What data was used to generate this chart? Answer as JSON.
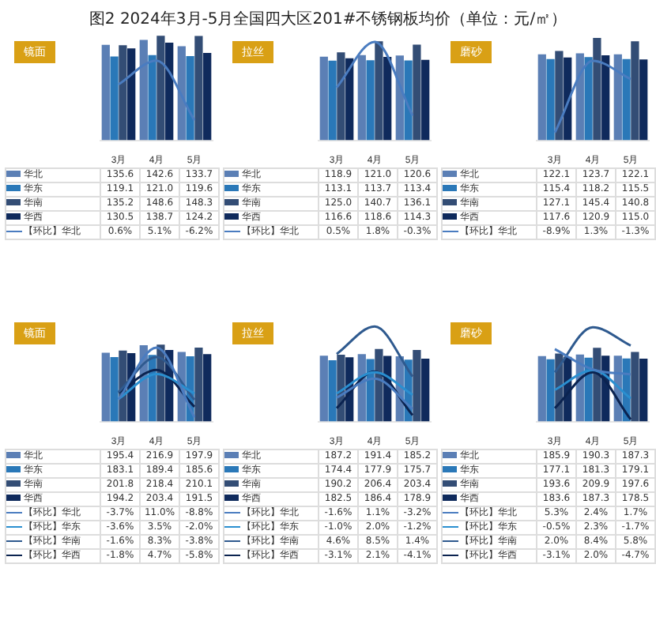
{
  "chart_data": [
    {
      "type": "bar",
      "title": "图2  2024年3月-5月全国四大区201#不锈钢板均价（单位：元/㎡）",
      "subtitle": "镜面",
      "categories": [
        "3月",
        "4月",
        "5月"
      ],
      "data_labels": true,
      "legend": "bottom",
      "series": [
        {
          "name": "华北",
          "color": "#5b7fb5",
          "values": [
            135.6,
            142.6,
            133.7
          ]
        },
        {
          "name": "华东",
          "color": "#2a78b8",
          "values": [
            119.1,
            121.0,
            119.6
          ],
          "value_labels": [
            "119.1",
            "121.0",
            "119.6"
          ]
        },
        {
          "name": "华南",
          "color": "#334d75",
          "values": [
            135.2,
            148.6,
            148.3
          ]
        },
        {
          "name": "华西",
          "color": "#0f2a5c",
          "values": [
            130.5,
            138.7,
            124.2
          ]
        },
        {
          "name": "【环比】华北",
          "type": "line",
          "axis": "y2",
          "color": "#4a7cc0",
          "values": [
            0.6,
            5.1,
            -6.2
          ],
          "value_labels": [
            "0.6%",
            "5.1%",
            "-6.2%"
          ]
        }
      ]
    },
    {
      "type": "bar",
      "subtitle": "拉丝",
      "categories": [
        "3月",
        "4月",
        "5月"
      ],
      "data_labels": true,
      "legend": "bottom",
      "series": [
        {
          "name": "华北",
          "color": "#5b7fb5",
          "values": [
            118.9,
            121.0,
            120.6
          ],
          "value_labels": [
            "118.9",
            "121.0",
            "120.6"
          ]
        },
        {
          "name": "华东",
          "color": "#2a78b8",
          "values": [
            113.1,
            113.7,
            113.4
          ]
        },
        {
          "name": "华南",
          "color": "#334d75",
          "values": [
            125.0,
            140.7,
            136.1
          ],
          "value_labels": [
            "125.0",
            "140.7",
            "136.1"
          ]
        },
        {
          "name": "华西",
          "color": "#0f2a5c",
          "values": [
            116.6,
            118.6,
            114.3
          ]
        },
        {
          "name": "【环比】华北",
          "type": "line",
          "axis": "y2",
          "color": "#4a7cc0",
          "values": [
            0.5,
            1.8,
            -0.3
          ],
          "value_labels": [
            "0.5%",
            "1.8%",
            "-0.3%"
          ]
        }
      ]
    },
    {
      "type": "bar",
      "subtitle": "磨砂",
      "categories": [
        "3月",
        "4月",
        "5月"
      ],
      "data_labels": true,
      "legend": "bottom",
      "series": [
        {
          "name": "华北",
          "color": "#5b7fb5",
          "values": [
            122.1,
            123.7,
            122.1
          ]
        },
        {
          "name": "华东",
          "color": "#2a78b8",
          "values": [
            115.4,
            118.2,
            115.5
          ]
        },
        {
          "name": "华南",
          "color": "#334d75",
          "values": [
            127.1,
            145.4,
            140.8
          ]
        },
        {
          "name": "华西",
          "color": "#0f2a5c",
          "values": [
            117.6,
            120.9,
            115.0
          ],
          "value_labels": [
            "117.6",
            "120.9",
            "115.0"
          ]
        },
        {
          "name": "【环比】华北",
          "type": "line",
          "axis": "y2",
          "color": "#4a7cc0",
          "values": [
            -8.9,
            1.3,
            -1.3
          ],
          "value_labels": [
            "-8.9%",
            "1.3%",
            "-1.3%"
          ]
        }
      ]
    },
    {
      "type": "bar",
      "subtitle": "镜面",
      "categories": [
        "3月",
        "4月",
        "5月"
      ],
      "data_labels": true,
      "legend": "bottom",
      "series": [
        {
          "name": "华北",
          "color": "#5b7fb5",
          "values": [
            195.4,
            216.9,
            197.9
          ]
        },
        {
          "name": "华东",
          "color": "#2a78b8",
          "values": [
            183.1,
            189.4,
            185.6
          ]
        },
        {
          "name": "华南",
          "color": "#334d75",
          "values": [
            201.8,
            218.4,
            210.1
          ]
        },
        {
          "name": "华西",
          "color": "#0f2a5c",
          "values": [
            194.2,
            203.4,
            191.5
          ]
        },
        {
          "name": "【环比】华北",
          "type": "line",
          "axis": "y2",
          "color": "#4a7cc0",
          "values": [
            -3.7,
            11.0,
            -8.8
          ],
          "value_labels": [
            "-3.7%",
            "11.0%",
            "-8.8%"
          ]
        },
        {
          "name": "【环比】华东",
          "type": "line",
          "axis": "y2",
          "color": "#2a8fd0",
          "values": [
            -3.6,
            3.5,
            -2.0
          ],
          "value_labels": [
            "-3.6%",
            "3.5%",
            "-2.0%"
          ]
        },
        {
          "name": "【环比】华南",
          "type": "line",
          "axis": "y2",
          "color": "#2f5a8f",
          "values": [
            -1.6,
            8.3,
            -3.8
          ],
          "value_labels": [
            "-1.6%",
            "8.3%",
            "-3.8%"
          ]
        },
        {
          "name": "【环比】华西",
          "type": "line",
          "axis": "y2",
          "color": "#0b2350",
          "values": [
            -1.8,
            4.7,
            -5.8
          ],
          "value_labels": [
            "-1.8%",
            "4.7%",
            "-5.8%"
          ]
        }
      ]
    },
    {
      "type": "bar",
      "subtitle": "拉丝",
      "categories": [
        "3月",
        "4月",
        "5月"
      ],
      "data_labels": true,
      "legend": "bottom",
      "series": [
        {
          "name": "华北",
          "color": "#5b7fb5",
          "values": [
            187.2,
            191.4,
            185.2
          ]
        },
        {
          "name": "华东",
          "color": "#2a78b8",
          "values": [
            174.4,
            177.9,
            175.7
          ]
        },
        {
          "name": "华南",
          "color": "#334d75",
          "values": [
            190.2,
            206.4,
            203.4
          ]
        },
        {
          "name": "华西",
          "color": "#0f2a5c",
          "values": [
            182.5,
            186.4,
            178.9
          ]
        },
        {
          "name": "【环比】华北",
          "type": "line",
          "axis": "y2",
          "color": "#4a7cc0",
          "values": [
            -1.6,
            1.1,
            -3.2
          ],
          "value_labels": [
            "-1.6%",
            "1.1%",
            "-3.2%"
          ]
        },
        {
          "name": "【环比】华东",
          "type": "line",
          "axis": "y2",
          "color": "#2a8fd0",
          "values": [
            -1.0,
            2.0,
            -1.2
          ],
          "value_labels": [
            "-1.0%",
            "2.0%",
            "-1.2%"
          ]
        },
        {
          "name": "【环比】华南",
          "type": "line",
          "axis": "y2",
          "color": "#2f5a8f",
          "values": [
            4.6,
            8.5,
            1.4
          ],
          "value_labels": [
            "4.6%",
            "8.5%",
            "1.4%"
          ]
        },
        {
          "name": "【环比】华西",
          "type": "line",
          "axis": "y2",
          "color": "#0b2350",
          "values": [
            -3.1,
            2.1,
            -4.1
          ],
          "value_labels": [
            "-3.1%",
            "2.1%",
            "-4.1%"
          ]
        }
      ]
    },
    {
      "type": "bar",
      "subtitle": "磨砂",
      "categories": [
        "3月",
        "4月",
        "5月"
      ],
      "data_labels": true,
      "legend": "bottom",
      "series": [
        {
          "name": "华北",
          "color": "#5b7fb5",
          "values": [
            185.9,
            190.3,
            187.3
          ]
        },
        {
          "name": "华东",
          "color": "#2a78b8",
          "values": [
            177.1,
            181.3,
            179.1
          ]
        },
        {
          "name": "华南",
          "color": "#334d75",
          "values": [
            193.6,
            209.9,
            197.6
          ]
        },
        {
          "name": "华西",
          "color": "#0f2a5c",
          "values": [
            183.6,
            187.3,
            178.5
          ]
        },
        {
          "name": "【环比】华北",
          "type": "line",
          "axis": "y2",
          "color": "#4a7cc0",
          "values": [
            5.3,
            2.4,
            1.7
          ],
          "value_labels": [
            "5.3%",
            "2.4%",
            "1.7%"
          ]
        },
        {
          "name": "【环比】华东",
          "type": "line",
          "axis": "y2",
          "color": "#2a8fd0",
          "values": [
            -0.5,
            2.3,
            -1.7
          ],
          "value_labels": [
            "-0.5%",
            "2.3%",
            "-1.7%"
          ]
        },
        {
          "name": "【环比】华南",
          "type": "line",
          "axis": "y2",
          "color": "#2f5a8f",
          "values": [
            2.0,
            8.4,
            5.8
          ],
          "value_labels": [
            "2.0%",
            "8.4%",
            "5.8%"
          ]
        },
        {
          "name": "【环比】华西",
          "type": "line",
          "axis": "y2",
          "color": "#0b2350",
          "values": [
            -3.1,
            2.0,
            -4.7
          ],
          "value_labels": [
            "-3.1%",
            "2.0%",
            "-4.7%"
          ]
        }
      ]
    }
  ]
}
